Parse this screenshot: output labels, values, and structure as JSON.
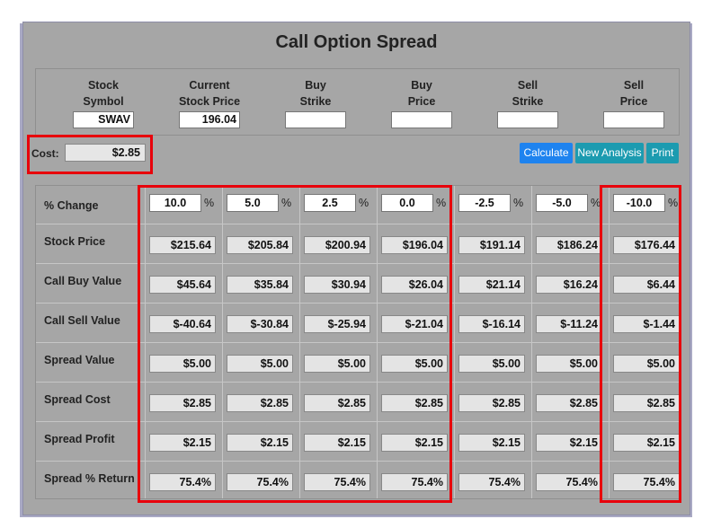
{
  "title": "Call Option Spread",
  "inputs": [
    {
      "label1": "Stock",
      "label2": "Symbol",
      "value": "SWAV"
    },
    {
      "label1": "Current",
      "label2": "Stock Price",
      "value": "196.04"
    },
    {
      "label1": "Buy",
      "label2": "Strike",
      "value": ""
    },
    {
      "label1": "Buy",
      "label2": "Price",
      "value": ""
    },
    {
      "label1": "Sell",
      "label2": "Strike",
      "value": ""
    },
    {
      "label1": "Sell",
      "label2": "Price",
      "value": ""
    }
  ],
  "cost": {
    "label": "Cost:",
    "value": "$2.85"
  },
  "buttons": {
    "calculate": "Calculate",
    "new_analysis": "New Analysis",
    "print": "Print"
  },
  "pct_label": "% Change",
  "pct_sign": "%",
  "pct_changes": [
    "10.0",
    "5.0",
    "2.5",
    "0.0",
    "-2.5",
    "-5.0",
    "-10.0"
  ],
  "rows": [
    {
      "label": "Stock Price",
      "values": [
        "$215.64",
        "$205.84",
        "$200.94",
        "$196.04",
        "$191.14",
        "$186.24",
        "$176.44"
      ]
    },
    {
      "label": "Call Buy Value",
      "values": [
        "$45.64",
        "$35.84",
        "$30.94",
        "$26.04",
        "$21.14",
        "$16.24",
        "$6.44"
      ]
    },
    {
      "label": "Call Sell Value",
      "values": [
        "$-40.64",
        "$-30.84",
        "$-25.94",
        "$-21.04",
        "$-16.14",
        "$-11.24",
        "$-1.44"
      ]
    },
    {
      "label": "Spread Value",
      "values": [
        "$5.00",
        "$5.00",
        "$5.00",
        "$5.00",
        "$5.00",
        "$5.00",
        "$5.00"
      ]
    },
    {
      "label": "Spread Cost",
      "values": [
        "$2.85",
        "$2.85",
        "$2.85",
        "$2.85",
        "$2.85",
        "$2.85",
        "$2.85"
      ]
    },
    {
      "label": "Spread Profit",
      "values": [
        "$2.15",
        "$2.15",
        "$2.15",
        "$2.15",
        "$2.15",
        "$2.15",
        "$2.15"
      ]
    },
    {
      "label": "Spread % Return",
      "values": [
        "75.4%",
        "75.4%",
        "75.4%",
        "75.4%",
        "75.4%",
        "75.4%",
        "75.4%"
      ]
    }
  ],
  "colors": {
    "highlight": "#e8000b",
    "calculate_button": "#1e83ef",
    "secondary_button": "#1c9bb0"
  }
}
